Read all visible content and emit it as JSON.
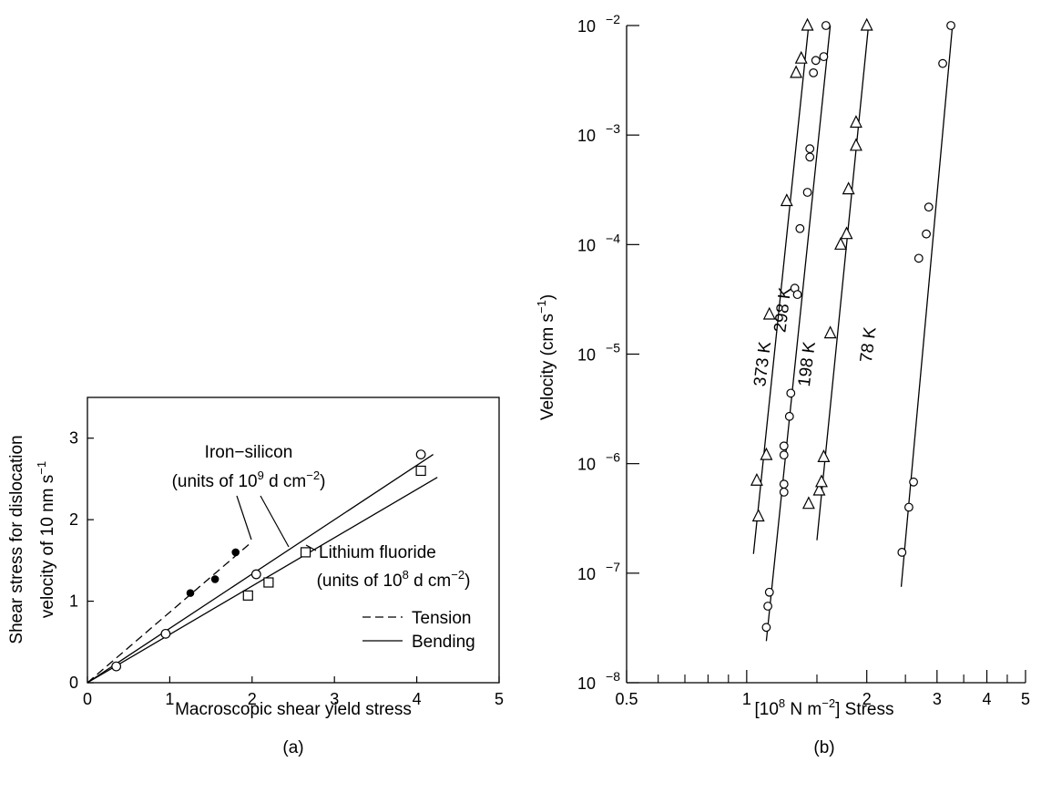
{
  "chart_data": [
    {
      "panel": "(a)",
      "type": "scatter",
      "xlabel": "Macroscopic shear yield stress",
      "ylabel": [
        "Shear stress for dislocation",
        "velocity of 10 nm s"
      ],
      "ylabel_sup": "−1",
      "xlim": [
        0,
        5
      ],
      "ylim": [
        0,
        3.5
      ],
      "xticks": [
        "0",
        "1",
        "2",
        "3",
        "4",
        "5"
      ],
      "yticks": [
        "0",
        "1",
        "2",
        "3"
      ],
      "annotations": {
        "iron_title": "Iron−silicon",
        "iron_units_a": "(units of 10",
        "iron_units_sup": "9",
        "iron_units_b": " d cm",
        "iron_units_sup2": "−2",
        "iron_units_c": ")",
        "lif_title": "Lithium fluoride",
        "lif_units_a": "(units of 10",
        "lif_units_sup": "8",
        "lif_units_b": " d cm",
        "lif_units_sup2": "−2",
        "lif_units_c": ")"
      },
      "legend": {
        "tension": "Tension",
        "bending": "Bending",
        "position": "bottom-right"
      },
      "series": [
        {
          "marker": "filled-circle",
          "points": [
            [
              1.25,
              1.1
            ],
            [
              1.55,
              1.27
            ],
            [
              1.8,
              1.6
            ]
          ]
        },
        {
          "marker": "open-circle",
          "points": [
            [
              0.35,
              0.2
            ],
            [
              0.95,
              0.6
            ],
            [
              2.05,
              1.33
            ],
            [
              4.05,
              2.8
            ]
          ]
        },
        {
          "marker": "open-square",
          "points": [
            [
              1.95,
              1.07
            ],
            [
              2.2,
              1.23
            ],
            [
              2.65,
              1.6
            ],
            [
              4.05,
              2.6
            ]
          ]
        }
      ],
      "lines": [
        {
          "style": "dashed",
          "from": [
            0,
            0
          ],
          "to": [
            2,
            1.73
          ]
        },
        {
          "style": "solid",
          "from": [
            0,
            0
          ],
          "to": [
            4.2,
            2.8
          ]
        },
        {
          "style": "solid",
          "from": [
            0,
            0
          ],
          "to": [
            4.25,
            2.52
          ]
        }
      ],
      "caption": "(a)"
    },
    {
      "panel": "(b)",
      "type": "scatter",
      "xscale": "log",
      "yscale": "log",
      "xlabel_a": "[10",
      "xlabel_sup": "8",
      "xlabel_b": " N m",
      "xlabel_sup2": "−2",
      "xlabel_c": "] Stress",
      "ylabel_a": "Velocity (cm s",
      "ylabel_sup": "−1",
      "ylabel_c": ")",
      "xlim": [
        0.5,
        5
      ],
      "ylim": [
        1e-08,
        0.01
      ],
      "xticks": [
        {
          "v": 0.5,
          "label": "0.5"
        },
        {
          "v": 1,
          "label": "1"
        },
        {
          "v": 2,
          "label": "2"
        },
        {
          "v": 3,
          "label": "3"
        },
        {
          "v": 4,
          "label": "4"
        },
        {
          "v": 5,
          "label": "5"
        }
      ],
      "x_minor_ticks": [
        0.6,
        0.7,
        0.8,
        0.9,
        1.5,
        2.5,
        3.5,
        4.5
      ],
      "yticks": [
        {
          "exp": -2,
          "base": "10",
          "sup": "−2"
        },
        {
          "exp": -3,
          "base": "10",
          "sup": "−3"
        },
        {
          "exp": -4,
          "base": "10",
          "sup": "−4"
        },
        {
          "exp": -5,
          "base": "10",
          "sup": "−5"
        },
        {
          "exp": -6,
          "base": "10",
          "sup": "−6"
        },
        {
          "exp": -7,
          "base": "10",
          "sup": "−7"
        },
        {
          "exp": -8,
          "base": "10",
          "sup": "−8"
        }
      ],
      "series": [
        {
          "label": "373 K",
          "marker": "triangle",
          "line": [
            [
              1.04,
              1.5e-07
            ],
            [
              1.43,
              0.01
            ]
          ],
          "points": [
            [
              1.07,
              3.3e-07
            ],
            [
              1.06,
              7e-07
            ],
            [
              1.12,
              1.2e-06
            ],
            [
              1.14,
              2.3e-05
            ],
            [
              1.26,
              0.00025
            ],
            [
              1.33,
              0.0037
            ],
            [
              1.37,
              0.005
            ],
            [
              1.42,
              0.01
            ]
          ]
        },
        {
          "label": "298 K",
          "marker": "circle",
          "line": [
            [
              1.12,
              2.4e-08
            ],
            [
              1.62,
              0.01
            ]
          ],
          "points": [
            [
              1.12,
              3.2e-08
            ],
            [
              1.13,
              5e-08
            ],
            [
              1.14,
              6.7e-08
            ],
            [
              1.24,
              5.5e-07
            ],
            [
              1.24,
              6.5e-07
            ],
            [
              1.24,
              1.2e-06
            ],
            [
              1.24,
              1.45e-06
            ],
            [
              1.28,
              2.7e-06
            ],
            [
              1.29,
              4.4e-06
            ],
            [
              1.32,
              4e-05
            ],
            [
              1.34,
              3.5e-05
            ],
            [
              1.36,
              0.00014
            ],
            [
              1.42,
              0.0003
            ],
            [
              1.44,
              0.00063
            ],
            [
              1.44,
              0.00075
            ],
            [
              1.47,
              0.0037
            ],
            [
              1.49,
              0.0048
            ],
            [
              1.56,
              0.0052
            ],
            [
              1.58,
              0.01
            ]
          ]
        },
        {
          "label": "198 K",
          "marker": "triangle",
          "line": [
            [
              1.5,
              2e-07
            ],
            [
              2.02,
              0.01
            ]
          ],
          "points": [
            [
              1.43,
              4.3e-07
            ],
            [
              1.52,
              5.7e-07
            ],
            [
              1.54,
              6.8e-07
            ],
            [
              1.56,
              1.15e-06
            ],
            [
              1.62,
              1.55e-05
            ],
            [
              1.72,
              0.0001
            ],
            [
              1.78,
              0.000125
            ],
            [
              1.8,
              0.00032
            ],
            [
              1.88,
              0.0008
            ],
            [
              1.88,
              0.0013
            ],
            [
              2.0,
              0.01
            ]
          ]
        },
        {
          "label": "78 K",
          "marker": "circle",
          "line": [
            [
              2.44,
              7.5e-08
            ],
            [
              3.28,
              0.01
            ]
          ],
          "points": [
            [
              2.45,
              1.55e-07
            ],
            [
              2.55,
              4e-07
            ],
            [
              2.62,
              6.8e-07
            ],
            [
              2.7,
              7.5e-05
            ],
            [
              2.82,
              0.000125
            ],
            [
              2.86,
              0.00022
            ],
            [
              3.1,
              0.0045
            ],
            [
              3.25,
              0.01
            ]
          ]
        }
      ],
      "caption": "(b)"
    }
  ]
}
